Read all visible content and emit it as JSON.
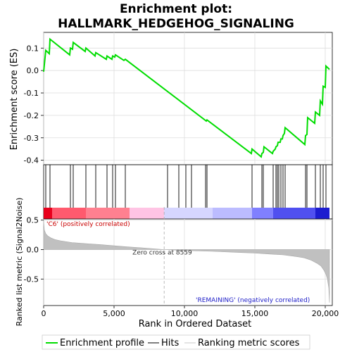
{
  "chart_data": {
    "type": "line",
    "title_line1": "Enrichment plot:",
    "title_line2": "HALLMARK_HEDGEHOG_SIGNALING",
    "es_axis": {
      "ylabel": "Enrichment score (ES)",
      "ylim": [
        -0.42,
        0.17
      ],
      "ticks": [
        0.1,
        0.0,
        -0.1,
        -0.2,
        -0.3,
        -0.4
      ],
      "tick_labels": [
        "0.1",
        "0.0",
        "-0.1",
        "-0.2",
        "-0.3",
        "-0.4"
      ]
    },
    "x_axis": {
      "xlabel": "Rank in Ordered Dataset",
      "xlim": [
        0,
        20500
      ],
      "ticks": [
        0,
        5000,
        10000,
        15000,
        20000
      ],
      "tick_labels": [
        "0",
        "5,000",
        "10,000",
        "15,000",
        "20,000"
      ]
    },
    "es_curve": {
      "x": [
        0,
        150,
        400,
        450,
        1850,
        1900,
        2050,
        2100,
        2950,
        3000,
        3650,
        3700,
        4450,
        4500,
        4850,
        4900,
        5050,
        5100,
        5700,
        5800,
        11550,
        11600,
        14750,
        14800,
        15450,
        15500,
        15600,
        15650,
        16250,
        16300,
        16450,
        16500,
        16600,
        16650,
        16800,
        16850,
        16950,
        17000,
        17100,
        17150,
        18550,
        18600,
        18700,
        18750,
        19250,
        19300,
        19600,
        19650,
        19800,
        19850,
        20000,
        20050,
        20300
      ],
      "y": [
        -0.005,
        0.09,
        0.075,
        0.14,
        0.07,
        0.1,
        0.095,
        0.125,
        0.085,
        0.1,
        0.065,
        0.08,
        0.05,
        0.065,
        0.05,
        0.065,
        0.06,
        0.07,
        0.045,
        0.05,
        -0.225,
        -0.22,
        -0.37,
        -0.35,
        -0.385,
        -0.37,
        -0.365,
        -0.34,
        -0.37,
        -0.36,
        -0.35,
        -0.34,
        -0.335,
        -0.32,
        -0.32,
        -0.305,
        -0.305,
        -0.29,
        -0.28,
        -0.255,
        -0.33,
        -0.29,
        -0.285,
        -0.21,
        -0.235,
        -0.185,
        -0.2,
        -0.135,
        -0.15,
        -0.07,
        -0.075,
        0.02,
        0.005
      ]
    },
    "hits": [
      150,
      450,
      1900,
      2100,
      3000,
      3700,
      4500,
      4900,
      5100,
      5800,
      8800,
      9600,
      10100,
      10500,
      11500,
      11600,
      14800,
      15500,
      15600,
      16300,
      16500,
      16600,
      16700,
      16850,
      17000,
      17150,
      18600,
      18700,
      19300,
      19650,
      19850,
      20050
    ],
    "heatbar": {
      "segments": [
        {
          "from": 0,
          "to": 600,
          "color": "#e8001c"
        },
        {
          "from": 600,
          "to": 3000,
          "color": "#ff5a6e"
        },
        {
          "from": 3000,
          "to": 6100,
          "color": "#ff8090"
        },
        {
          "from": 6100,
          "to": 8559,
          "color": "#ffc4e4"
        },
        {
          "from": 8559,
          "to": 12000,
          "color": "#d6d6ff"
        },
        {
          "from": 12000,
          "to": 14800,
          "color": "#bcbcff"
        },
        {
          "from": 14800,
          "to": 16300,
          "color": "#8080ff"
        },
        {
          "from": 16300,
          "to": 19300,
          "color": "#5050f0"
        },
        {
          "from": 19300,
          "to": 20300,
          "color": "#1c1cd0"
        }
      ]
    },
    "metric_axis": {
      "ylabel": "Ranked list metric (Signal2Noise)",
      "ylim": [
        -0.95,
        0.52
      ],
      "ticks": [
        0.5,
        0.0,
        -0.5
      ],
      "tick_labels": [
        "0.5",
        "0.0",
        "-0.5"
      ]
    },
    "metric_curve": {
      "x": [
        0,
        50,
        150,
        300,
        500,
        800,
        1200,
        2000,
        3000,
        4000,
        5000,
        6000,
        7000,
        8000,
        8559,
        10000,
        12000,
        14000,
        15000,
        16000,
        17000,
        18000,
        18500,
        19000,
        19400,
        19700,
        19900,
        20050,
        20150,
        20250,
        20300
      ],
      "y": [
        0.48,
        0.33,
        0.27,
        0.23,
        0.2,
        0.17,
        0.15,
        0.12,
        0.1,
        0.085,
        0.065,
        0.045,
        0.03,
        0.01,
        0.0,
        -0.015,
        -0.03,
        -0.05,
        -0.06,
        -0.075,
        -0.09,
        -0.12,
        -0.14,
        -0.18,
        -0.23,
        -0.28,
        -0.35,
        -0.42,
        -0.5,
        -0.65,
        -0.9
      ]
    },
    "zero_cross_rank": 8559,
    "zero_cross_label": "Zero cross at 8559",
    "pos_label": "'C6' (positively correlated)",
    "neg_label": "'REMAINING' (negatively correlated)",
    "legend": [
      {
        "label": "Enrichment profile",
        "color": "#00dd00"
      },
      {
        "label": "Hits",
        "color": "#000000"
      },
      {
        "label": "Ranking metric scores",
        "color": "#c8c8c8"
      }
    ],
    "colors": {
      "es_line": "#00dd00",
      "metric_fill": "#c0c0c0",
      "pos_label": "#c80000",
      "neg_label": "#2020c8",
      "zero_line": "#aaaaaa"
    }
  }
}
